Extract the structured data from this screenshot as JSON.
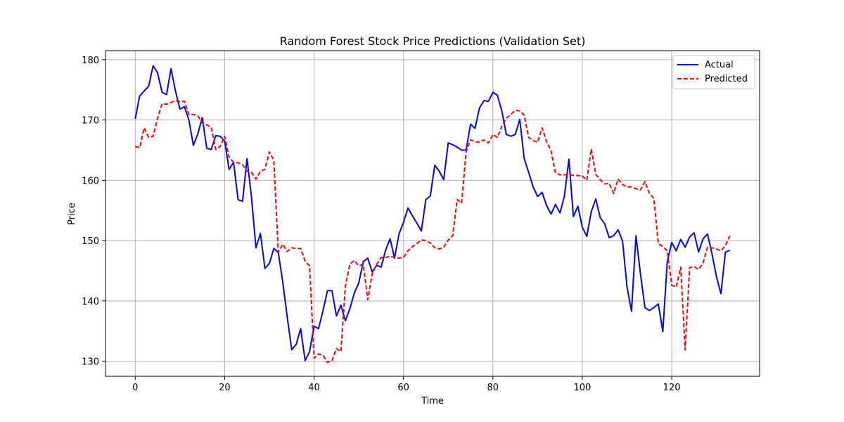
{
  "chart_data": {
    "type": "line",
    "title": "Random Forest Stock Price Predictions (Validation Set)",
    "xlabel": "Time",
    "ylabel": "Price",
    "xlim": [
      -6.65,
      139.65
    ],
    "ylim": [
      127.5,
      181.5
    ],
    "xticks": [
      0,
      20,
      40,
      60,
      80,
      100,
      120
    ],
    "yticks": [
      130,
      140,
      150,
      160,
      170,
      180
    ],
    "grid": true,
    "legend_position": "top-right",
    "series": [
      {
        "name": "Actual",
        "color": "#0000ff",
        "style": "solid",
        "values": [
          170.2,
          174.0,
          174.8,
          175.6,
          179.0,
          177.8,
          174.6,
          174.2,
          178.5,
          174.8,
          171.8,
          172.2,
          170.0,
          165.8,
          167.7,
          170.4,
          165.3,
          165.1,
          167.4,
          167.3,
          166.5,
          161.8,
          163.0,
          156.8,
          156.5,
          163.6,
          157.2,
          148.8,
          151.2,
          145.4,
          146.2,
          148.7,
          148.0,
          143.1,
          137.3,
          131.9,
          132.8,
          135.4,
          130.1,
          131.6,
          135.8,
          135.4,
          138.4,
          141.7,
          141.7,
          137.5,
          139.3,
          136.7,
          138.7,
          141.3,
          143.0,
          146.5,
          147.1,
          144.8,
          145.9,
          145.6,
          148.4,
          150.3,
          147.1,
          151.1,
          153.0,
          155.4,
          154.1,
          152.9,
          151.6,
          156.8,
          157.4,
          162.5,
          161.5,
          160.1,
          166.2,
          165.9,
          165.5,
          165.0,
          165.0,
          169.3,
          168.6,
          172.0,
          173.2,
          173.1,
          174.6,
          174.1,
          171.5,
          167.6,
          167.3,
          167.6,
          170.1,
          163.6,
          161.3,
          158.9,
          157.3,
          158.0,
          155.8,
          154.4,
          156.0,
          154.6,
          157.4,
          163.5,
          154.0,
          155.7,
          152.2,
          150.7,
          154.8,
          156.9,
          153.8,
          152.8,
          150.5,
          150.8,
          151.8,
          149.9,
          142.3,
          138.3,
          150.8,
          144.5,
          138.9,
          138.4,
          138.9,
          139.5,
          134.9,
          146.5,
          149.7,
          148.3,
          150.2,
          148.9,
          150.6,
          151.3,
          148.1,
          150.3,
          151.1,
          147.8,
          144.0,
          141.2,
          148.1,
          148.4
        ]
      },
      {
        "name": "Predicted",
        "color": "#ff0000",
        "style": "dashed",
        "values": [
          165.6,
          165.4,
          168.7,
          167.1,
          167.3,
          170.3,
          172.7,
          172.6,
          172.9,
          173.2,
          173.0,
          173.1,
          170.9,
          170.9,
          170.7,
          169.5,
          169.2,
          168.8,
          165.1,
          165.6,
          167.3,
          163.8,
          163.0,
          162.9,
          162.6,
          161.5,
          161.3,
          160.2,
          161.5,
          161.8,
          164.7,
          163.3,
          148.1,
          149.4,
          148.2,
          148.8,
          148.7,
          148.7,
          146.6,
          145.8,
          130.5,
          131.2,
          131.0,
          129.8,
          130.1,
          132.1,
          131.6,
          142.4,
          146.1,
          146.7,
          145.8,
          146.1,
          140.2,
          144.4,
          146.1,
          147.2,
          147.2,
          147.4,
          147.2,
          147.1,
          147.2,
          148.3,
          149.0,
          149.5,
          150.1,
          150.0,
          149.6,
          148.8,
          148.6,
          148.9,
          150.1,
          150.8,
          156.8,
          156.2,
          164.7,
          166.7,
          166.4,
          166.3,
          166.7,
          166.2,
          167.6,
          167.1,
          169.0,
          170.3,
          170.9,
          171.6,
          171.5,
          170.8,
          167.1,
          166.6,
          166.3,
          168.7,
          166.4,
          164.9,
          161.2,
          160.9,
          160.9,
          161.0,
          160.8,
          160.8,
          160.7,
          160.0,
          165.2,
          161.0,
          160.1,
          159.4,
          159.5,
          157.8,
          160.2,
          159.3,
          158.9,
          158.9,
          158.6,
          158.4,
          159.8,
          157.8,
          157.0,
          149.5,
          149.0,
          148.3,
          142.6,
          142.3,
          145.6,
          131.9,
          145.5,
          145.7,
          145.2,
          146.3,
          148.9,
          148.8,
          148.6,
          148.3,
          149.2,
          150.8
        ]
      }
    ]
  }
}
